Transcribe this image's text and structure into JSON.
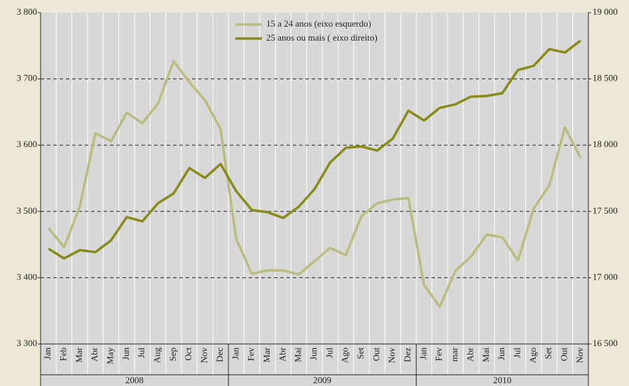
{
  "chart_data": {
    "type": "line",
    "categories": [
      "Jan",
      "Feb",
      "Mar",
      "Abr",
      "May",
      "Jun",
      "Jul",
      "Aug",
      "Sep",
      "Oct",
      "Nov",
      "Dec",
      "Jan",
      "Fev",
      "Mar",
      "Abr",
      "Mai",
      "Jun",
      "Jul",
      "Ago",
      "Set",
      "Out",
      "Nov",
      "Dez",
      "Jan",
      "Fev",
      "mar",
      "Abr",
      "Mai",
      "Jun",
      "Jul",
      "Ago",
      "Set",
      "Out",
      "Nov"
    ],
    "x_groups": [
      "2008",
      "2009",
      "2010"
    ],
    "series": [
      {
        "name": "15 a 24 anos (eixo esquerdo)",
        "color": "#bcbc80",
        "axis": "y",
        "values": [
          3475,
          3446,
          3507,
          3618,
          3606,
          3649,
          3633,
          3663,
          3727,
          3695,
          3668,
          3624,
          3458,
          3406,
          3411,
          3411,
          3405,
          3425,
          3445,
          3434,
          3493,
          3512,
          3518,
          3520,
          3389,
          3356,
          3410,
          3432,
          3465,
          3461,
          3426,
          3504,
          3539,
          3627,
          3581
        ]
      },
      {
        "name": "25 anos ou mais ( eixo direito)",
        "color": "#8a8a1a",
        "axis": "y2",
        "values": [
          17219,
          17145,
          17208,
          17193,
          17282,
          17457,
          17425,
          17562,
          17636,
          17827,
          17753,
          17858,
          17652,
          17510,
          17494,
          17451,
          17536,
          17668,
          17869,
          17980,
          17990,
          17959,
          18049,
          18260,
          18186,
          18281,
          18308,
          18366,
          18371,
          18392,
          18567,
          18598,
          18725,
          18699,
          18789
        ]
      }
    ],
    "ylim": [
      3300,
      3800
    ],
    "yticks": [
      {
        "value": 3300,
        "label": "3 300"
      },
      {
        "value": 3400,
        "label": "3 400"
      },
      {
        "value": 3500,
        "label": "3 500"
      },
      {
        "value": 3600,
        "label": "3 600"
      },
      {
        "value": 3700,
        "label": "3 700"
      },
      {
        "value": 3800,
        "label": "3 800"
      }
    ],
    "y2lim": [
      16500,
      19000
    ],
    "y2ticks": [
      {
        "value": 16500,
        "label": "16 500"
      },
      {
        "value": 17000,
        "label": "17 000"
      },
      {
        "value": 17500,
        "label": "17 500"
      },
      {
        "value": 18000,
        "label": "18 000"
      },
      {
        "value": 18500,
        "label": "18 500"
      },
      {
        "value": 19000,
        "label": "19 000"
      }
    ],
    "grid": true,
    "legend": "top"
  }
}
